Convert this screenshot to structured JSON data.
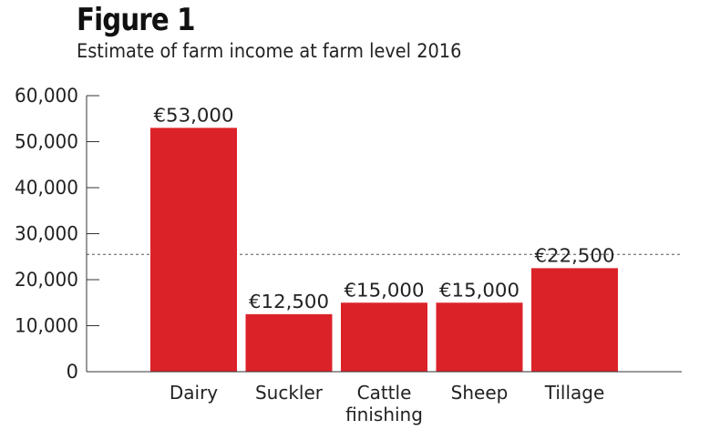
{
  "figure": {
    "title": "Figure 1",
    "subtitle": "Estimate of farm income at farm level 2016"
  },
  "colors": {
    "bar": "#dc2229",
    "axis": "#333333",
    "reference_line": "#555555"
  },
  "chart_data": {
    "type": "bar",
    "title": "Estimate of farm income at farm level 2016",
    "categories": [
      [
        "Dairy"
      ],
      [
        "Suckler"
      ],
      [
        "Cattle",
        "finishing"
      ],
      [
        "Sheep"
      ],
      [
        "Tillage"
      ]
    ],
    "values": [
      53000,
      12500,
      15000,
      15000,
      22500
    ],
    "data_labels": [
      "€53,000",
      "€12,500",
      "€15,000",
      "€15,000",
      "€22,500"
    ],
    "yticks": [
      0,
      10000,
      20000,
      30000,
      40000,
      50000,
      60000
    ],
    "ytick_labels": [
      "0",
      "10,000",
      "20,000",
      "30,000",
      "40,000",
      "50,000",
      "60,000"
    ],
    "ylim": [
      0,
      60000
    ],
    "reference_line": {
      "value": 25500,
      "style": "dotted"
    },
    "xlabel": "",
    "ylabel": "",
    "grid": false,
    "legend": "none"
  }
}
